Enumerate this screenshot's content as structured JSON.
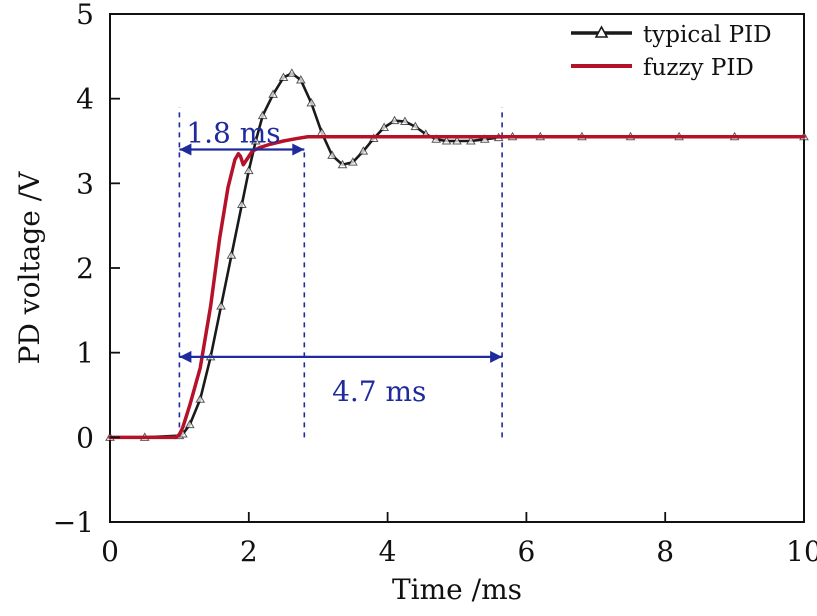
{
  "chart_data": {
    "type": "line",
    "title": "",
    "xlabel": "Time /ms",
    "ylabel": "PD voltage /V",
    "xlim": [
      0,
      10
    ],
    "ylim": [
      -1,
      5
    ],
    "xticks": [
      0,
      2,
      4,
      6,
      8,
      10
    ],
    "yticks": [
      -1,
      0,
      1,
      2,
      3,
      4,
      5
    ],
    "legend": {
      "position": "top-right",
      "entries": [
        "typical PID",
        "fuzzy PID"
      ]
    },
    "series": [
      {
        "name": "typical PID",
        "color": "#1a1a1a",
        "marker": "triangle-open",
        "x": [
          0,
          0.5,
          1.0,
          1.05,
          1.15,
          1.3,
          1.45,
          1.6,
          1.75,
          1.9,
          2.0,
          2.1,
          2.2,
          2.35,
          2.5,
          2.62,
          2.75,
          2.9,
          3.05,
          3.2,
          3.35,
          3.5,
          3.65,
          3.8,
          3.95,
          4.1,
          4.25,
          4.4,
          4.55,
          4.7,
          4.85,
          5.0,
          5.2,
          5.4,
          5.6,
          5.8,
          6.2,
          6.8,
          7.5,
          8.2,
          9.0,
          10.0
        ],
        "y": [
          0.0,
          0.0,
          0.02,
          0.04,
          0.15,
          0.45,
          0.95,
          1.55,
          2.15,
          2.75,
          3.15,
          3.5,
          3.8,
          4.05,
          4.25,
          4.3,
          4.22,
          3.95,
          3.6,
          3.33,
          3.22,
          3.25,
          3.38,
          3.53,
          3.66,
          3.74,
          3.73,
          3.67,
          3.58,
          3.52,
          3.5,
          3.5,
          3.5,
          3.52,
          3.54,
          3.55,
          3.55,
          3.55,
          3.55,
          3.55,
          3.55,
          3.55
        ]
      },
      {
        "name": "fuzzy PID",
        "color": "#b5122a",
        "marker": "none",
        "x": [
          0,
          0.5,
          0.95,
          1.0,
          1.05,
          1.15,
          1.3,
          1.45,
          1.58,
          1.7,
          1.8,
          1.85,
          1.88,
          1.92,
          1.97,
          2.05,
          2.15,
          2.3,
          2.5,
          2.7,
          2.85,
          3.0,
          3.5,
          4.0,
          5.0,
          6.0,
          7.0,
          8.0,
          9.0,
          10.0
        ],
        "y": [
          0.0,
          0.0,
          0.0,
          0.03,
          0.12,
          0.38,
          0.82,
          1.55,
          2.35,
          2.95,
          3.28,
          3.35,
          3.32,
          3.22,
          3.28,
          3.38,
          3.42,
          3.46,
          3.5,
          3.53,
          3.55,
          3.55,
          3.55,
          3.55,
          3.55,
          3.55,
          3.55,
          3.55,
          3.55,
          3.55
        ]
      }
    ],
    "annotations": [
      {
        "text": "1.8 ms",
        "arrow_from_x": 1.0,
        "arrow_to_x": 2.8,
        "arrow_y": 3.4,
        "label_x": 1.1,
        "label_y": 3.6
      },
      {
        "text": "4.7 ms",
        "arrow_from_x": 1.0,
        "arrow_to_x": 5.65,
        "arrow_y": 0.95,
        "label_x": 3.2,
        "label_y": 0.55
      }
    ],
    "reference_lines": [
      {
        "x": 1.0,
        "y_from": 0.0,
        "y_to": 3.9
      },
      {
        "x": 2.8,
        "y_from": 0.0,
        "y_to": 3.4
      },
      {
        "x": 5.65,
        "y_from": 0.0,
        "y_to": 3.9
      }
    ],
    "annotation_color": "#1f2a9c",
    "axis_color": "#111111"
  }
}
